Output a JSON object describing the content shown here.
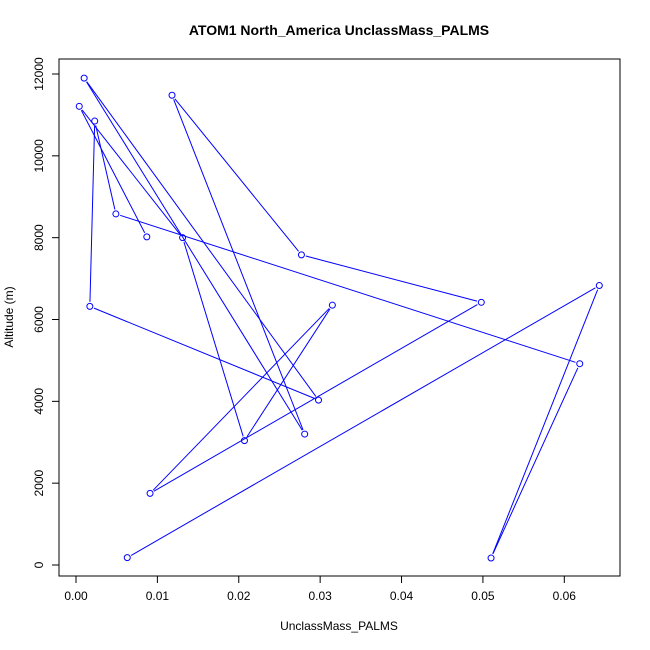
{
  "chart_data": {
    "type": "line",
    "title": "ATOM1 North_America UnclassMass_PALMS",
    "xlabel": "UnclassMass_PALMS",
    "ylabel": "Altitude (m)",
    "xlim": [
      0.0,
      0.065
    ],
    "ylim": [
      0,
      12000
    ],
    "x_ticks": [
      0.0,
      0.01,
      0.02,
      0.03,
      0.04,
      0.05,
      0.06
    ],
    "x_tick_labels": [
      "0.00",
      "0.01",
      "0.02",
      "0.03",
      "0.04",
      "0.05",
      "0.06"
    ],
    "y_ticks": [
      0,
      2000,
      4000,
      6000,
      8000,
      10000,
      12000
    ],
    "y_tick_labels": [
      "0",
      "2000",
      "4000",
      "6000",
      "8000",
      "10000",
      "12000"
    ],
    "grid": false,
    "legend": "none",
    "series": [
      {
        "color": "#0000ff",
        "marker": "open-circle",
        "points": [
          {
            "x": 0.0063,
            "y": 180
          },
          {
            "x": 0.0643,
            "y": 6830
          },
          {
            "x": 0.051,
            "y": 170
          },
          {
            "x": 0.0619,
            "y": 4920
          },
          {
            "x": 0.0049,
            "y": 8580
          },
          {
            "x": 0.0023,
            "y": 10850
          },
          {
            "x": 0.0017,
            "y": 6320
          },
          {
            "x": 0.0298,
            "y": 4030
          },
          {
            "x": 0.001,
            "y": 11900
          },
          {
            "x": 0.0281,
            "y": 3200
          },
          {
            "x": 0.0118,
            "y": 11480
          },
          {
            "x": 0.0277,
            "y": 7580
          },
          {
            "x": 0.0498,
            "y": 6420
          },
          {
            "x": 0.0091,
            "y": 1750
          },
          {
            "x": 0.0315,
            "y": 6350
          },
          {
            "x": 0.0207,
            "y": 3040
          },
          {
            "x": 0.0131,
            "y": 8000
          },
          {
            "x": 0.0004,
            "y": 11210
          },
          {
            "x": 0.0087,
            "y": 8020
          }
        ]
      }
    ]
  }
}
